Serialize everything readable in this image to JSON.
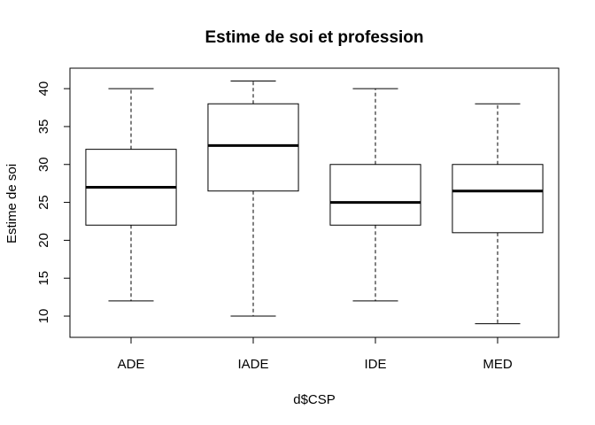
{
  "chart_data": {
    "type": "boxplot",
    "title": "Estime de soi et profession",
    "xlabel": "d$CSP",
    "ylabel": "Estime de soi",
    "categories": [
      "ADE",
      "IADE",
      "IDE",
      "MED"
    ],
    "boxes": [
      {
        "category": "ADE",
        "whisker_low": 12,
        "q1": 22,
        "median": 27,
        "q3": 32,
        "whisker_high": 40
      },
      {
        "category": "IADE",
        "whisker_low": 10,
        "q1": 26.5,
        "median": 32.5,
        "q3": 38,
        "whisker_high": 41
      },
      {
        "category": "IDE",
        "whisker_low": 12,
        "q1": 22,
        "median": 25,
        "q3": 30,
        "whisker_high": 40
      },
      {
        "category": "MED",
        "whisker_low": 9,
        "q1": 21,
        "median": 26.5,
        "q3": 30,
        "whisker_high": 38
      }
    ],
    "y_ticks": [
      10,
      15,
      20,
      25,
      30,
      35,
      40
    ],
    "ylim": [
      7.2,
      42.7
    ],
    "grid": false,
    "legend": "none"
  }
}
